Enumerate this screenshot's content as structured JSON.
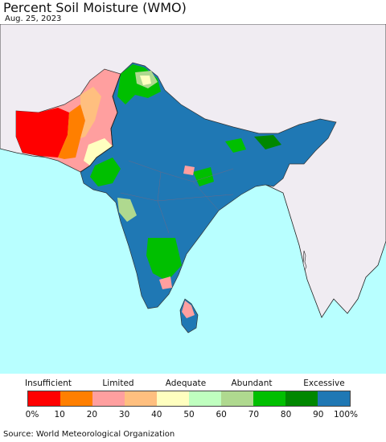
{
  "title": "Percent Soil Moisture (WMO)",
  "date": "Aug. 25, 2023",
  "source": "Source: World Meteorological Organization",
  "legend": {
    "categories": [
      "Insufficient",
      "Limited",
      "Adequate",
      "Abundant",
      "Excessive"
    ],
    "ticks": [
      "0%",
      "10",
      "20",
      "30",
      "40",
      "50",
      "60",
      "70",
      "80",
      "90",
      "100%"
    ],
    "colors": [
      "#ff0000",
      "#ff7f00",
      "#ff9f9f",
      "#ffbf7f",
      "#ffffbf",
      "#bfffbf",
      "#afd98f",
      "#00bf00",
      "#008700",
      "#1f78b4"
    ]
  },
  "map": {
    "ocean_color": "#b8ffff",
    "land_color": "#f0ecf2",
    "region": "South Asia"
  }
}
